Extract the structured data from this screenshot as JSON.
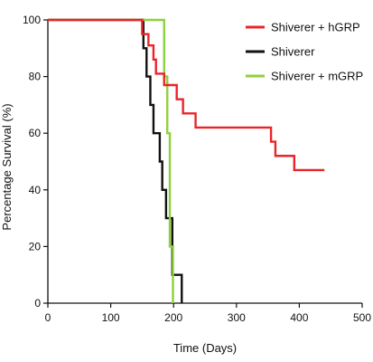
{
  "chart_data": {
    "type": "line",
    "step": true,
    "xlabel": "Time (Days)",
    "ylabel": "Percentage Survival (%)",
    "xlim": [
      0,
      500
    ],
    "ylim": [
      0,
      100
    ],
    "xticks": [
      0,
      100,
      200,
      300,
      400,
      500
    ],
    "yticks": [
      0,
      20,
      40,
      60,
      80,
      100
    ],
    "grid": false,
    "legend_position": "top-right",
    "series": [
      {
        "name": "Shiverer + hGRP",
        "color": "#e8262a",
        "points": [
          [
            0,
            100
          ],
          [
            150,
            100
          ],
          [
            150,
            95
          ],
          [
            160,
            95
          ],
          [
            160,
            91
          ],
          [
            168,
            91
          ],
          [
            168,
            86
          ],
          [
            172,
            86
          ],
          [
            172,
            81
          ],
          [
            185,
            81
          ],
          [
            185,
            77
          ],
          [
            205,
            77
          ],
          [
            205,
            72
          ],
          [
            215,
            72
          ],
          [
            215,
            67
          ],
          [
            235,
            67
          ],
          [
            235,
            62
          ],
          [
            355,
            62
          ],
          [
            355,
            57
          ],
          [
            362,
            57
          ],
          [
            362,
            52
          ],
          [
            392,
            52
          ],
          [
            392,
            47
          ],
          [
            440,
            47
          ]
        ]
      },
      {
        "name": "Shiverer",
        "color": "#111111",
        "points": [
          [
            0,
            100
          ],
          [
            152,
            100
          ],
          [
            152,
            90
          ],
          [
            157,
            90
          ],
          [
            157,
            80
          ],
          [
            163,
            80
          ],
          [
            163,
            70
          ],
          [
            168,
            70
          ],
          [
            168,
            60
          ],
          [
            178,
            60
          ],
          [
            178,
            50
          ],
          [
            182,
            50
          ],
          [
            182,
            40
          ],
          [
            188,
            40
          ],
          [
            188,
            30
          ],
          [
            198,
            30
          ],
          [
            198,
            10
          ],
          [
            213,
            10
          ],
          [
            213,
            0
          ]
        ]
      },
      {
        "name": "Shiverer + mGRP",
        "color": "#8ed13c",
        "points": [
          [
            0,
            100
          ],
          [
            185,
            100
          ],
          [
            185,
            80
          ],
          [
            190,
            80
          ],
          [
            190,
            60
          ],
          [
            194,
            60
          ],
          [
            194,
            20
          ],
          [
            199,
            20
          ],
          [
            199,
            0
          ]
        ]
      }
    ]
  }
}
